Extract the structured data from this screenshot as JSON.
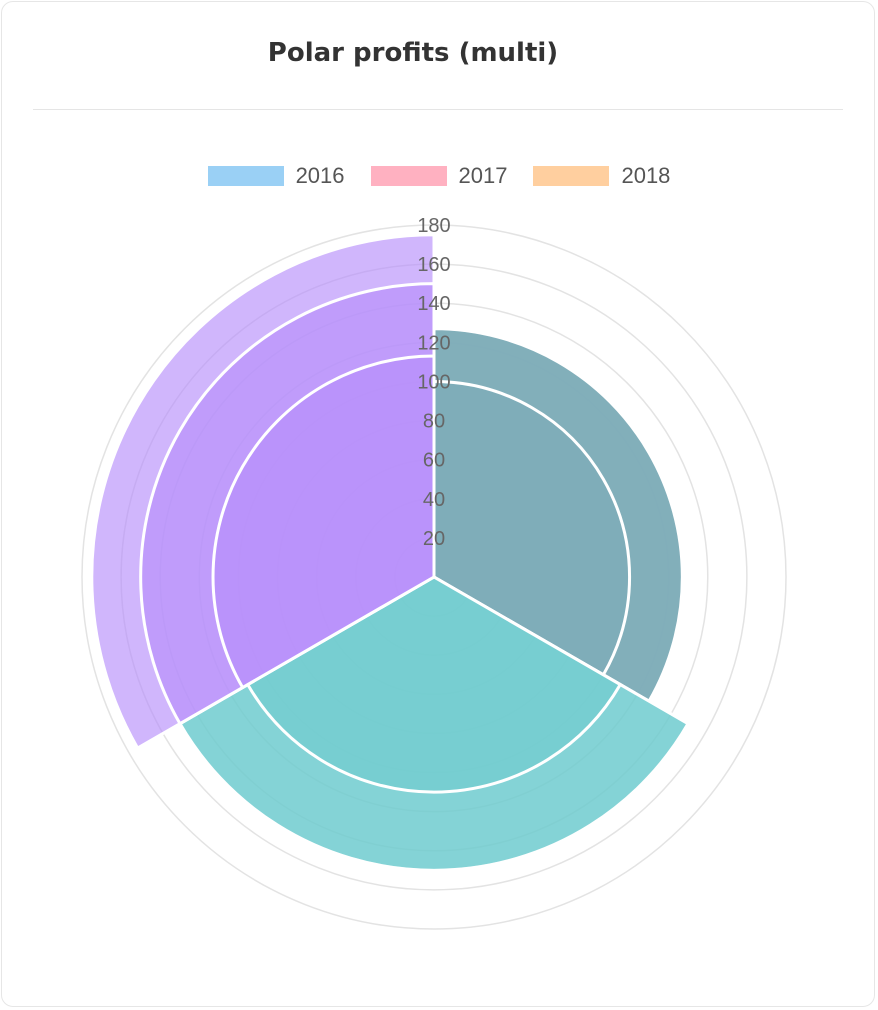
{
  "chart_data": {
    "type": "polarArea",
    "title": "Polar profits (multi)",
    "legend_position": "top",
    "series": [
      {
        "name": "2016",
        "color": "#9ad0f5"
      },
      {
        "name": "2017",
        "color": "#ffb1c1"
      },
      {
        "name": "2018",
        "color": "#ffcf9f"
      }
    ],
    "segments": [
      {
        "fill": "rgba(127,173,185,0.85)",
        "values": [
          100,
          127,
          127
        ]
      },
      {
        "fill": "rgba(111,204,206,0.62)",
        "values": [
          110,
          150,
          150
        ]
      },
      {
        "fill": "rgba(183,143,251,0.65)",
        "values": [
          113,
          150,
          175
        ]
      }
    ],
    "r_axis": {
      "min": 0,
      "max": 180,
      "step": 20,
      "ticks": [
        "20",
        "40",
        "60",
        "80",
        "100",
        "120",
        "140",
        "160",
        "180"
      ]
    }
  }
}
